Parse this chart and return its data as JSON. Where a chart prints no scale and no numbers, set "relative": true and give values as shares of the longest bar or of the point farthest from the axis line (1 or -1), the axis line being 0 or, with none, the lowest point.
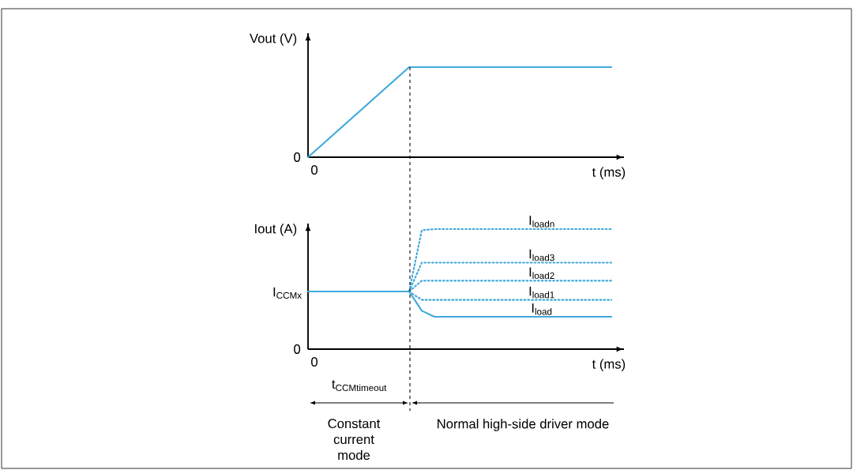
{
  "chart_data": [
    {
      "type": "line",
      "relative": true,
      "ylabel": "Vout (V)",
      "xlabel": "t (ms)",
      "legend": false,
      "marker": "none",
      "categories": [
        null,
        null,
        null,
        null,
        null,
        null,
        null,
        null,
        null,
        null,
        null,
        null,
        null,
        null,
        null,
        null,
        null,
        null,
        null,
        null,
        null,
        null,
        null,
        null,
        null
      ],
      "series": [
        {
          "color": "#3fa9dc",
          "line_style": "solid",
          "values": [
            0,
            0.125,
            0.25,
            0.375,
            0.5,
            0.625,
            0.75,
            0.875,
            1,
            1,
            1,
            1,
            1,
            1,
            1,
            1,
            1,
            1,
            1,
            1,
            1,
            1,
            1,
            1,
            1
          ]
        }
      ],
      "annotations": [
        "0",
        "0"
      ]
    },
    {
      "type": "line",
      "relative": true,
      "ylabel": "Iout (A)",
      "xlabel": "t (ms)",
      "legend": false,
      "marker": "none",
      "categories": [
        null,
        null,
        null,
        null,
        null,
        null,
        null,
        null,
        null,
        null,
        null,
        null,
        null,
        null,
        null,
        null,
        null,
        null,
        null,
        null,
        null,
        null,
        null,
        null,
        null
      ],
      "series": [
        {
          "name": "\\mathrm{I}_{\\mathrm{loadn}}",
          "color": "#3fa9dc",
          "line_style": "dotted",
          "values": [
            null,
            null,
            null,
            null,
            null,
            null,
            null,
            null,
            0.48,
            0.99,
            1,
            1,
            1,
            1,
            1,
            1,
            1,
            1,
            1,
            1,
            1,
            1,
            1,
            1,
            1
          ]
        },
        {
          "name": "\\mathrm{I}_{\\mathrm{load3}}",
          "color": "#3fa9dc",
          "line_style": "dotted",
          "values": [
            null,
            null,
            null,
            null,
            null,
            null,
            null,
            null,
            0.48,
            0.72,
            0.72,
            0.72,
            0.72,
            0.72,
            0.72,
            0.72,
            0.72,
            0.72,
            0.72,
            0.72,
            0.72,
            0.72,
            0.72,
            0.72,
            0.72
          ]
        },
        {
          "name": "\\mathrm{I}_{\\mathrm{load2}}",
          "color": "#3fa9dc",
          "line_style": "dotted",
          "values": [
            null,
            null,
            null,
            null,
            null,
            null,
            null,
            null,
            0.48,
            0.57,
            0.57,
            0.57,
            0.57,
            0.57,
            0.57,
            0.57,
            0.57,
            0.57,
            0.57,
            0.57,
            0.57,
            0.57,
            0.57,
            0.57,
            0.57
          ]
        },
        {
          "name": "\\mathrm{I}_{\\mathrm{load1}}",
          "color": "#3fa9dc",
          "line_style": "dotted",
          "values": [
            null,
            null,
            null,
            null,
            null,
            null,
            null,
            null,
            0.48,
            0.41,
            0.41,
            0.41,
            0.41,
            0.41,
            0.41,
            0.41,
            0.41,
            0.41,
            0.41,
            0.41,
            0.41,
            0.41,
            0.41,
            0.41,
            0.41
          ]
        },
        {
          "name": "\\mathrm{I}_{\\mathrm{load}}",
          "color": "#3fa9dc",
          "line_style": "solid",
          "values": [
            0.48,
            0.48,
            0.48,
            0.48,
            0.48,
            0.48,
            0.48,
            0.48,
            0.48,
            0.32,
            0.27,
            0.27,
            0.27,
            0.27,
            0.27,
            0.27,
            0.27,
            0.27,
            0.27,
            0.27,
            0.27,
            0.27,
            0.27,
            0.27,
            0.27
          ]
        }
      ],
      "annotations": [
        "0",
        "0",
        "\\mathrm{I}_{\\mathrm{CCMx}}",
        "\\mathrm{t}_{\\mathrm{CCMtimeout}}",
        "Constant current mode",
        "Normal high-side driver mode"
      ]
    }
  ]
}
